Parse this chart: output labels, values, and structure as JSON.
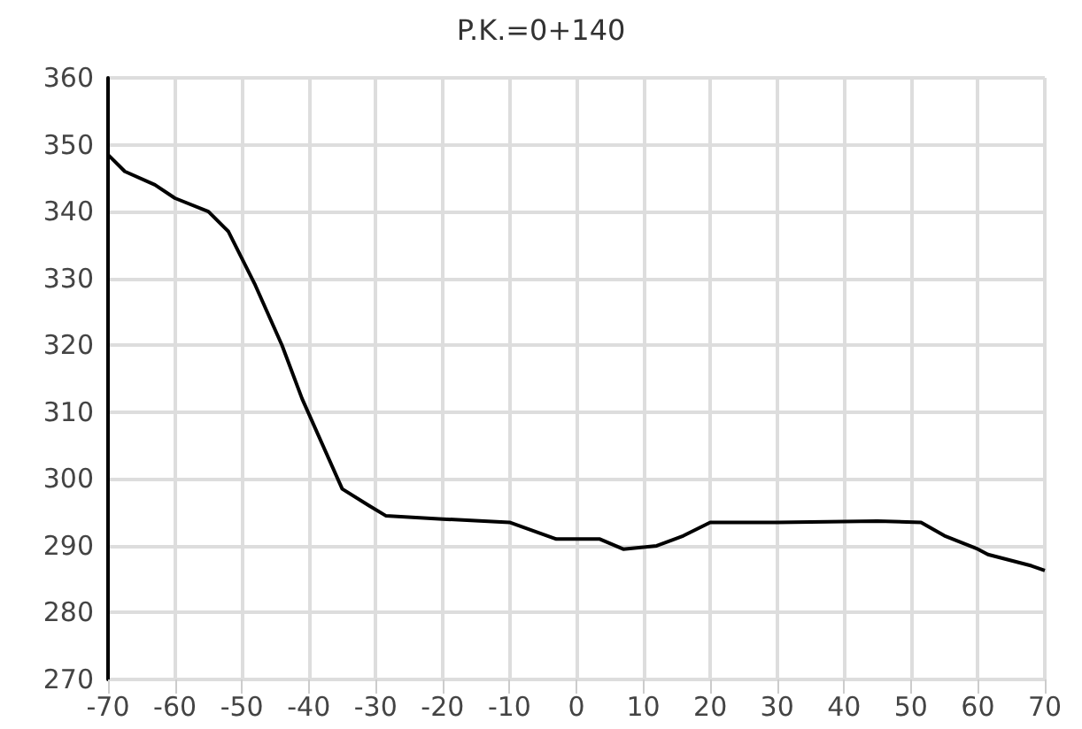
{
  "chart_data": {
    "type": "line",
    "title": "P.K.=0+140",
    "x": [
      -70,
      -67.5,
      -63,
      -60,
      -55,
      -52,
      -48,
      -44,
      -41,
      -35,
      -31,
      -28.5,
      -20,
      -10,
      -3,
      3.5,
      7,
      12,
      16,
      20,
      30,
      45,
      51.5,
      55,
      60,
      61.5,
      68,
      70
    ],
    "series": [
      {
        "color": "#000000",
        "values": [
          348.5,
          346,
          344,
          342,
          340,
          337,
          329,
          320,
          312,
          298.5,
          296,
          294.5,
          294,
          293.5,
          291,
          291,
          289.5,
          290,
          291.5,
          293.5,
          293.5,
          293.7,
          293.5,
          291.5,
          289.5,
          288.7,
          287,
          286.3
        ]
      }
    ],
    "xlim": [
      -70,
      70
    ],
    "xticks": [
      -70,
      -60,
      -50,
      -40,
      -30,
      -20,
      -10,
      0,
      10,
      20,
      30,
      40,
      50,
      60,
      70
    ],
    "ylim": [
      270,
      360
    ],
    "yticks": [
      270,
      280,
      290,
      300,
      310,
      320,
      330,
      340,
      350,
      360
    ],
    "grid": true,
    "marker": "none",
    "line_style": "solid"
  }
}
